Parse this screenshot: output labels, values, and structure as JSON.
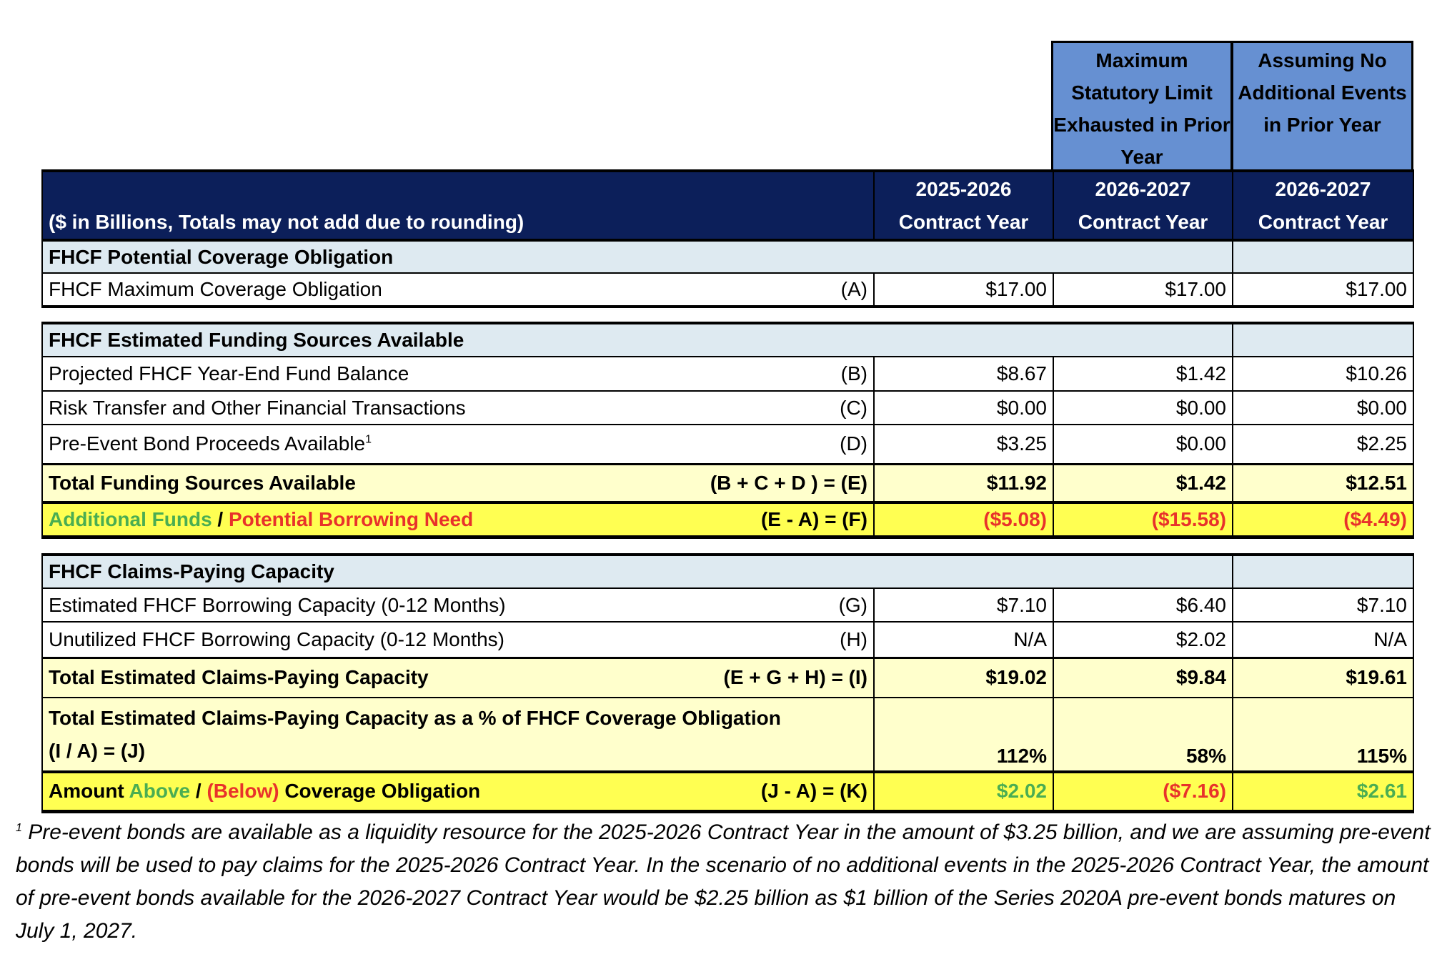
{
  "scenario_headers": [
    "Maximum Statutory Limit Exhausted in Prior Year",
    "Assuming No Additional Events in Prior Year"
  ],
  "header": {
    "units_note": "($ in Billions, Totals may not add due to rounding)",
    "columns": [
      {
        "years": "2025-2026",
        "label": "Contract Year"
      },
      {
        "years": "2026-2027",
        "label": "Contract Year"
      },
      {
        "years": "2026-2027",
        "label": "Contract Year"
      }
    ]
  },
  "section1": {
    "title": "FHCF Potential Coverage Obligation",
    "rows": [
      {
        "label": "FHCF Maximum Coverage Obligation",
        "code": "(A)",
        "values": [
          "$17.00",
          "$17.00",
          "$17.00"
        ]
      }
    ]
  },
  "section2": {
    "title": "FHCF Estimated Funding Sources Available",
    "rows": [
      {
        "label": "Projected FHCF Year-End Fund Balance",
        "code": "(B)",
        "values": [
          "$8.67",
          "$1.42",
          "$10.26"
        ]
      },
      {
        "label": "Risk Transfer and Other Financial Transactions",
        "code": "(C)",
        "values": [
          "$0.00",
          "$0.00",
          "$0.00"
        ]
      },
      {
        "label": "Pre-Event Bond Proceeds Available",
        "footnote_ref": "1",
        "code": "(D)",
        "values": [
          "$3.25",
          "$0.00",
          "$2.25"
        ]
      }
    ],
    "total": {
      "label": "Total Funding Sources Available",
      "code": "(B + C + D ) = (E)",
      "values": [
        "$11.92",
        "$1.42",
        "$12.51"
      ]
    },
    "net": {
      "label_positive": "Additional Funds",
      "separator": "/",
      "label_negative": "Potential Borrowing Need",
      "code": "(E - A) = (F)",
      "values": [
        "($5.08)",
        "($15.58)",
        "($4.49)"
      ]
    }
  },
  "section3": {
    "title": "FHCF Claims-Paying Capacity",
    "rows": [
      {
        "label": "Estimated FHCF Borrowing Capacity (0-12 Months)",
        "code": "(G)",
        "values": [
          "$7.10",
          "$6.40",
          "$7.10"
        ]
      },
      {
        "label": "Unutilized FHCF Borrowing Capacity (0-12 Months)",
        "code": "(H)",
        "values": [
          "N/A",
          "$2.02",
          "N/A"
        ]
      }
    ],
    "total": {
      "label": "Total Estimated Claims-Paying Capacity",
      "code": "(E + G + H) = (I)",
      "values": [
        "$19.02",
        "$9.84",
        "$19.61"
      ]
    },
    "pct": {
      "label": "Total Estimated Claims-Paying Capacity as a % of FHCF Coverage Obligation",
      "code": "(I / A) = (J)",
      "values": [
        "112%",
        "58%",
        "115%"
      ]
    },
    "net": {
      "prefix": "Amount",
      "label_positive": "Above",
      "separator": "/",
      "label_negative": "(Below)",
      "suffix": "Coverage Obligation",
      "code": "(J - A) = (K)",
      "values": [
        "$2.02",
        "($7.16)",
        "$2.61"
      ]
    }
  },
  "footnote": {
    "marker": "1",
    "text": "Pre-event bonds are available as a liquidity resource for the 2025-2026 Contract Year in the amount of $3.25 billion, and we are assuming pre-event bonds will be used to pay claims for the 2025-2026 Contract Year.  In the scenario of no additional events in the 2025-2026 Contract Year, the amount of pre-event bonds available for the 2026-2027 Contract Year would be $2.25 billion as $1 billion of the Series 2020A pre-event bonds matures on July 1, 2027."
  },
  "colors": {
    "navy": "#0c1f5a",
    "scenario_blue": "#6690d2",
    "section_blue": "#deeaf1",
    "light_yellow": "#ffffcc",
    "yellow": "#ffff52",
    "green": "#4aad52",
    "red": "#e8322b"
  }
}
